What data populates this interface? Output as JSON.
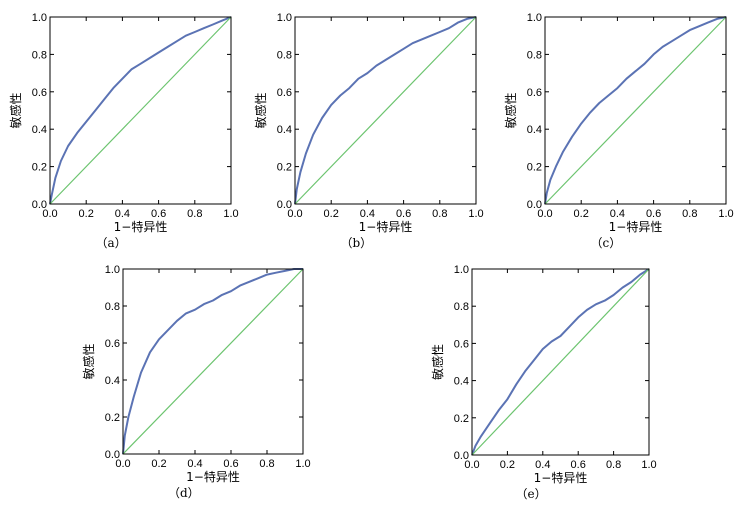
{
  "colors": {
    "roc": "#5b73b4",
    "reference": "#6cc46f",
    "frame": "#000000"
  },
  "chart_data": [
    {
      "type": "line",
      "caption": "（a）",
      "xlabel": "1−特异性",
      "ylabel": "敏感性",
      "xlim": [
        0,
        1
      ],
      "ylim": [
        0,
        1
      ],
      "xticks": [
        "0.0",
        "0.2",
        "0.4",
        "0.6",
        "0.8",
        "1.0"
      ],
      "yticks": [
        "0.0",
        "0.2",
        "0.4",
        "0.6",
        "0.8",
        "1.0"
      ],
      "series": [
        {
          "role": "roc",
          "x": [
            0,
            0.01,
            0.03,
            0.06,
            0.1,
            0.15,
            0.2,
            0.25,
            0.3,
            0.35,
            0.4,
            0.45,
            0.5,
            0.55,
            0.6,
            0.65,
            0.7,
            0.75,
            0.8,
            0.85,
            0.9,
            0.95,
            1.0
          ],
          "y": [
            0,
            0.05,
            0.14,
            0.23,
            0.31,
            0.38,
            0.44,
            0.5,
            0.56,
            0.62,
            0.67,
            0.72,
            0.75,
            0.78,
            0.81,
            0.84,
            0.87,
            0.9,
            0.92,
            0.94,
            0.96,
            0.98,
            1.0
          ]
        },
        {
          "role": "reference",
          "x": [
            0,
            1
          ],
          "y": [
            0,
            1
          ]
        }
      ]
    },
    {
      "type": "line",
      "caption": "（b）",
      "xlabel": "1−特异性",
      "ylabel": "敏感性",
      "xlim": [
        0,
        1
      ],
      "ylim": [
        0,
        1
      ],
      "xticks": [
        "0.0",
        "0.2",
        "0.4",
        "0.6",
        "0.8",
        "1.0"
      ],
      "yticks": [
        "0.0",
        "0.2",
        "0.4",
        "0.6",
        "0.8",
        "1.0"
      ],
      "series": [
        {
          "role": "roc",
          "x": [
            0,
            0.01,
            0.03,
            0.06,
            0.1,
            0.15,
            0.2,
            0.25,
            0.3,
            0.35,
            0.4,
            0.45,
            0.5,
            0.55,
            0.6,
            0.65,
            0.7,
            0.75,
            0.8,
            0.85,
            0.9,
            0.95,
            1.0
          ],
          "y": [
            0,
            0.08,
            0.17,
            0.27,
            0.37,
            0.46,
            0.53,
            0.58,
            0.62,
            0.67,
            0.7,
            0.74,
            0.77,
            0.8,
            0.83,
            0.86,
            0.88,
            0.9,
            0.92,
            0.94,
            0.97,
            0.99,
            1.0
          ]
        },
        {
          "role": "reference",
          "x": [
            0,
            1
          ],
          "y": [
            0,
            1
          ]
        }
      ]
    },
    {
      "type": "line",
      "caption": "（c）",
      "xlabel": "1−特异性",
      "ylabel": "敏感性",
      "xlim": [
        0,
        1
      ],
      "ylim": [
        0,
        1
      ],
      "xticks": [
        "0.0",
        "0.2",
        "0.4",
        "0.6",
        "0.8",
        "1.0"
      ],
      "yticks": [
        "0.0",
        "0.2",
        "0.4",
        "0.6",
        "0.8",
        "1.0"
      ],
      "series": [
        {
          "role": "roc",
          "x": [
            0,
            0.01,
            0.03,
            0.06,
            0.1,
            0.15,
            0.2,
            0.25,
            0.3,
            0.35,
            0.4,
            0.45,
            0.5,
            0.55,
            0.6,
            0.65,
            0.7,
            0.75,
            0.8,
            0.85,
            0.9,
            0.95,
            1.0
          ],
          "y": [
            0,
            0.06,
            0.13,
            0.2,
            0.28,
            0.36,
            0.43,
            0.49,
            0.54,
            0.58,
            0.62,
            0.67,
            0.71,
            0.75,
            0.8,
            0.84,
            0.87,
            0.9,
            0.93,
            0.95,
            0.97,
            0.99,
            1.0
          ]
        },
        {
          "role": "reference",
          "x": [
            0,
            1
          ],
          "y": [
            0,
            1
          ]
        }
      ]
    },
    {
      "type": "line",
      "caption": "（d）",
      "xlabel": "1−特异性",
      "ylabel": "敏感性",
      "xlim": [
        0,
        1
      ],
      "ylim": [
        0,
        1
      ],
      "xticks": [
        "0.0",
        "0.2",
        "0.4",
        "0.6",
        "0.8",
        "1.0"
      ],
      "yticks": [
        "0.0",
        "0.2",
        "0.4",
        "0.6",
        "0.8",
        "1.0"
      ],
      "series": [
        {
          "role": "roc",
          "x": [
            0,
            0.01,
            0.03,
            0.06,
            0.1,
            0.15,
            0.2,
            0.25,
            0.3,
            0.35,
            0.4,
            0.45,
            0.5,
            0.55,
            0.6,
            0.65,
            0.7,
            0.75,
            0.8,
            0.85,
            0.9,
            0.95,
            1.0
          ],
          "y": [
            0,
            0.1,
            0.2,
            0.31,
            0.44,
            0.55,
            0.62,
            0.67,
            0.72,
            0.76,
            0.78,
            0.81,
            0.83,
            0.86,
            0.88,
            0.91,
            0.93,
            0.95,
            0.97,
            0.98,
            0.99,
            1.0,
            1.0
          ]
        },
        {
          "role": "reference",
          "x": [
            0,
            1
          ],
          "y": [
            0,
            1
          ]
        }
      ]
    },
    {
      "type": "line",
      "caption": "（e）",
      "xlabel": "1−特异性",
      "ylabel": "敏感性",
      "xlim": [
        0,
        1
      ],
      "ylim": [
        0,
        1
      ],
      "xticks": [
        "0.0",
        "0.2",
        "0.4",
        "0.6",
        "0.8",
        "1.0"
      ],
      "yticks": [
        "0.0",
        "0.2",
        "0.4",
        "0.6",
        "0.8",
        "1.0"
      ],
      "series": [
        {
          "role": "roc",
          "x": [
            0,
            0.02,
            0.05,
            0.1,
            0.15,
            0.2,
            0.25,
            0.3,
            0.35,
            0.4,
            0.45,
            0.5,
            0.55,
            0.6,
            0.65,
            0.7,
            0.75,
            0.8,
            0.85,
            0.9,
            0.95,
            1.0
          ],
          "y": [
            0,
            0.05,
            0.1,
            0.17,
            0.24,
            0.3,
            0.38,
            0.45,
            0.51,
            0.57,
            0.61,
            0.64,
            0.69,
            0.74,
            0.78,
            0.81,
            0.83,
            0.86,
            0.9,
            0.93,
            0.97,
            1.0
          ]
        },
        {
          "role": "reference",
          "x": [
            0,
            1
          ],
          "y": [
            0,
            1
          ]
        }
      ]
    }
  ]
}
